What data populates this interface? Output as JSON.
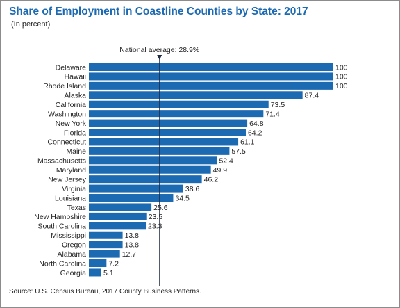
{
  "chart_data": {
    "type": "bar",
    "orientation": "horizontal",
    "title": "Share of Employment in Coastline Counties by State: 2017",
    "subtitle": "(In percent)",
    "categories": [
      "Delaware",
      "Hawaii",
      "Rhode Island",
      "Alaska",
      "California",
      "Washington",
      "New York",
      "Florida",
      "Connecticut",
      "Maine",
      "Massachusetts",
      "Maryland",
      "New Jersey",
      "Virginia",
      "Louisiana",
      "Texas",
      "New Hampshire",
      "South Carolina",
      "Mississippi",
      "Oregon",
      "Alabama",
      "North Carolina",
      "Georgia"
    ],
    "values": [
      100,
      100,
      100,
      87.4,
      73.5,
      71.4,
      64.8,
      64.2,
      61.1,
      57.5,
      52.4,
      49.9,
      46.2,
      38.6,
      34.5,
      25.6,
      23.5,
      23.3,
      13.8,
      13.8,
      12.7,
      7.2,
      5.1
    ],
    "value_labels": [
      "100",
      "100",
      "100",
      "87.4",
      "73.5",
      "71.4",
      "64.8",
      "64.2",
      "61.1",
      "57.5",
      "52.4",
      "49.9",
      "46.2",
      "38.6",
      "34.5",
      "25.6",
      "23.5",
      "23.3",
      "13.8",
      "13.8",
      "12.7",
      "7.2",
      "5.1"
    ],
    "xlim": [
      0,
      100
    ],
    "grid": false,
    "bar_color": "#1c6ab2",
    "reference_line": {
      "value": 28.9,
      "label": "National average: 28.9%"
    },
    "source": "Source: U.S. Census Bureau, 2017 County Business Patterns."
  }
}
